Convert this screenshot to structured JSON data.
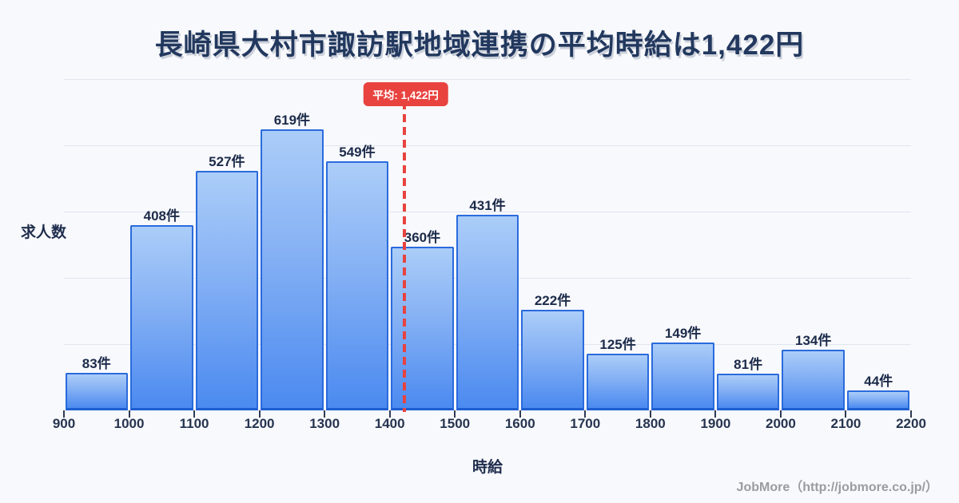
{
  "title": "長崎県大村市諏訪駅地域連携の平均時給は1,422円",
  "footer": "JobMore（http://jobmore.co.jp/）",
  "chart_data": {
    "type": "bar",
    "title": "長崎県大村市諏訪駅地域連携の平均時給は1,422円",
    "xlabel": "時給",
    "ylabel": "求人数",
    "unit_suffix": "件",
    "bucket_size": 100,
    "x_range": [
      900,
      2200
    ],
    "x_ticks": [
      "900",
      "1000",
      "1100",
      "1200",
      "1300",
      "1400",
      "1500",
      "1600",
      "1700",
      "1800",
      "1900",
      "2000",
      "2100",
      "2200"
    ],
    "values": [
      83,
      408,
      527,
      619,
      549,
      360,
      431,
      222,
      125,
      149,
      81,
      134,
      44
    ],
    "value_labels": [
      "83件",
      "408件",
      "527件",
      "619件",
      "549件",
      "360件",
      "431件",
      "222件",
      "125件",
      "149件",
      "81件",
      "134件",
      "44件"
    ],
    "average": 1422,
    "average_label": "平均: 1,422円",
    "grid": true,
    "gridline_count": 5,
    "legend_position": "none"
  },
  "colors": {
    "background": "#f8f9fc",
    "title_text": "#22385e",
    "label_text": "#1f2d4d",
    "bar_fill_top": "#abcdf8",
    "bar_fill_bottom": "#4b8af0",
    "bar_border": "#2a6bdd",
    "average_red": "#e8433f",
    "grid": "#dfe5f0",
    "footer_text": "#9b9ba0"
  }
}
